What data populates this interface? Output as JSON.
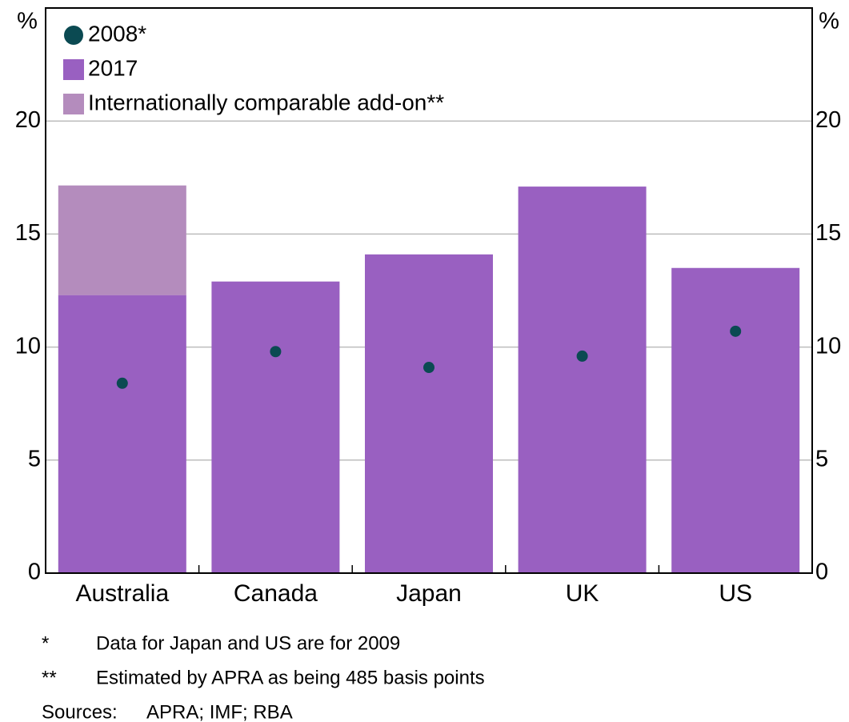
{
  "chart_data": {
    "type": "bar",
    "ylabel": "%",
    "y2label": "%",
    "categories": [
      "Australia",
      "Canada",
      "Japan",
      "UK",
      "US"
    ],
    "series": [
      {
        "name": "2008*",
        "type": "dot",
        "color": "#0b4a52",
        "values": [
          8.4,
          9.8,
          9.1,
          9.6,
          10.7
        ]
      },
      {
        "name": "2017",
        "type": "bar",
        "color": "#9960c1",
        "values": [
          12.3,
          12.9,
          14.1,
          17.1,
          13.5
        ]
      },
      {
        "name": "Internationally comparable add-on**",
        "type": "bar",
        "color": "#b48cbd",
        "values": [
          4.85,
          null,
          null,
          null,
          null
        ]
      }
    ],
    "ylim": [
      0,
      25
    ],
    "yticks": [
      0,
      5,
      10,
      15,
      20
    ],
    "y2lim": [
      0,
      25
    ],
    "y2ticks": [
      0,
      5,
      10,
      15,
      20
    ],
    "grid": true,
    "stacked": true,
    "legend": "top-left",
    "notes": [
      {
        "mark": "*",
        "text": "Data for Japan and US are for 2009"
      },
      {
        "mark": "**",
        "text": "Estimated by APRA as being 485 basis points"
      },
      {
        "mark": "Sources:",
        "text": "APRA; IMF; RBA"
      }
    ]
  }
}
